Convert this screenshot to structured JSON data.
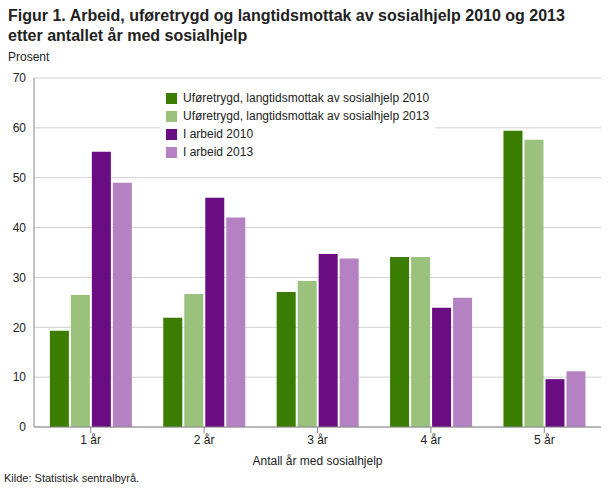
{
  "chart_data": {
    "type": "bar",
    "title": "Figur 1. Arbeid, uføretrygd og langtidsmottak av sosialhjelp 2010 og 2013 etter antallet år med sosialhjelp",
    "y_label": "Prosent",
    "x_label": "Antall år med sosialhjelp",
    "source": "Kilde: Statistisk sentralbyrå.",
    "categories": [
      "1 år",
      "2 år",
      "3 år",
      "4 år",
      "5 år"
    ],
    "series": [
      {
        "name": "Uføretrygd, langtidsmottak av sosialhjelp 2010",
        "color": "#3a7d00",
        "values": [
          19.3,
          21.9,
          27.1,
          34.1,
          59.4
        ]
      },
      {
        "name": "Uføretrygd, langtidsmottak av sosialhjelp 2013",
        "color": "#9bc27c",
        "values": [
          26.5,
          26.7,
          29.3,
          34.1,
          57.6
        ]
      },
      {
        "name": "I arbeid 2010",
        "color": "#6a0d83",
        "values": [
          55.2,
          46.0,
          34.7,
          23.9,
          9.6
        ]
      },
      {
        "name": "I arbeid 2013",
        "color": "#b482c2",
        "values": [
          49.0,
          42.0,
          33.8,
          25.9,
          11.2
        ]
      }
    ],
    "ylim": [
      0,
      70
    ],
    "yticks": [
      0,
      10,
      20,
      30,
      40,
      50,
      60,
      70
    ],
    "grid": true,
    "legend": "upper center"
  }
}
